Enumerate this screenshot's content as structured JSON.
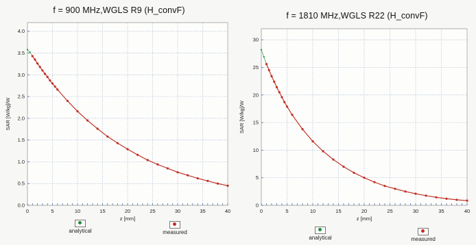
{
  "chart_data": [
    {
      "type": "line",
      "title": "f = 900 MHz,WGLS R9 (H_convF)",
      "xlabel": "z [mm]",
      "ylabel": "SAR [W/kg]/W",
      "xlim": [
        0,
        40
      ],
      "ylim": [
        0,
        4.2
      ],
      "xticks": [
        0,
        5,
        10,
        15,
        20,
        25,
        30,
        35,
        40
      ],
      "yticks": [
        0.0,
        0.5,
        1.0,
        1.5,
        2.0,
        2.5,
        3.0,
        3.5,
        4.0
      ],
      "grid": true,
      "legend_position": "bottom",
      "series": [
        {
          "name": "analytical",
          "color": "#1f8f3a",
          "x": [
            0,
            0.5,
            1,
            2,
            3,
            4,
            5,
            6,
            8,
            10,
            12,
            14,
            16,
            18,
            20,
            22,
            24,
            26,
            28,
            30,
            32,
            34,
            36,
            38,
            40
          ],
          "y": [
            3.58,
            3.52,
            3.43,
            3.26,
            3.1,
            2.95,
            2.8,
            2.66,
            2.4,
            2.16,
            1.95,
            1.76,
            1.58,
            1.43,
            1.29,
            1.16,
            1.04,
            0.94,
            0.85,
            0.76,
            0.69,
            0.62,
            0.56,
            0.5,
            0.45
          ]
        },
        {
          "name": "measured",
          "color": "#c62c22",
          "x": [
            1,
            1.5,
            2,
            2.5,
            3,
            3.5,
            4,
            4.5,
            5,
            5.5,
            6,
            8,
            10,
            12,
            14,
            16,
            18,
            20,
            22,
            24,
            26,
            28,
            30,
            32,
            34,
            36,
            38,
            40
          ],
          "y": [
            3.43,
            3.35,
            3.26,
            3.18,
            3.1,
            3.02,
            2.95,
            2.87,
            2.8,
            2.73,
            2.66,
            2.4,
            2.16,
            1.95,
            1.76,
            1.58,
            1.43,
            1.29,
            1.16,
            1.04,
            0.94,
            0.85,
            0.76,
            0.69,
            0.62,
            0.56,
            0.5,
            0.45
          ]
        }
      ]
    },
    {
      "type": "line",
      "title": "f = 1810 MHz,WGLS R22 (H_convF)",
      "xlabel": "z [mm]",
      "ylabel": "SAR [W/kg]/W",
      "xlim": [
        0,
        40
      ],
      "ylim": [
        0,
        32
      ],
      "xticks": [
        0,
        5,
        10,
        15,
        20,
        25,
        30,
        35,
        40
      ],
      "yticks": [
        0,
        5,
        10,
        15,
        20,
        25,
        30
      ],
      "grid": true,
      "legend_position": "bottom",
      "series": [
        {
          "name": "analytical",
          "color": "#1f8f3a",
          "x": [
            0,
            0.5,
            1,
            1.5,
            2,
            2.5,
            3,
            4,
            5,
            6,
            8,
            10,
            12,
            14,
            16,
            18,
            20,
            22,
            24,
            26,
            28,
            30,
            32,
            34,
            36,
            38,
            40
          ],
          "y": [
            28.2,
            26.9,
            25.6,
            24.5,
            23.4,
            22.4,
            21.4,
            19.6,
            17.9,
            16.4,
            13.8,
            11.6,
            9.8,
            8.3,
            7.0,
            5.9,
            5.0,
            4.2,
            3.5,
            3.0,
            2.5,
            2.1,
            1.75,
            1.45,
            1.2,
            1.0,
            0.85
          ]
        },
        {
          "name": "measured",
          "color": "#c62c22",
          "x": [
            1,
            1.5,
            2,
            2.5,
            3,
            3.5,
            4,
            4.5,
            5,
            6,
            8,
            10,
            12,
            14,
            16,
            18,
            20,
            22,
            24,
            26,
            28,
            30,
            32,
            34,
            36,
            38,
            40
          ],
          "y": [
            25.6,
            24.5,
            23.4,
            22.4,
            21.4,
            20.5,
            19.6,
            18.7,
            17.9,
            16.4,
            13.8,
            11.6,
            9.8,
            8.3,
            7.0,
            5.9,
            5.0,
            4.2,
            3.5,
            3.0,
            2.5,
            2.1,
            1.75,
            1.45,
            1.2,
            1.0,
            0.85
          ]
        }
      ]
    }
  ]
}
